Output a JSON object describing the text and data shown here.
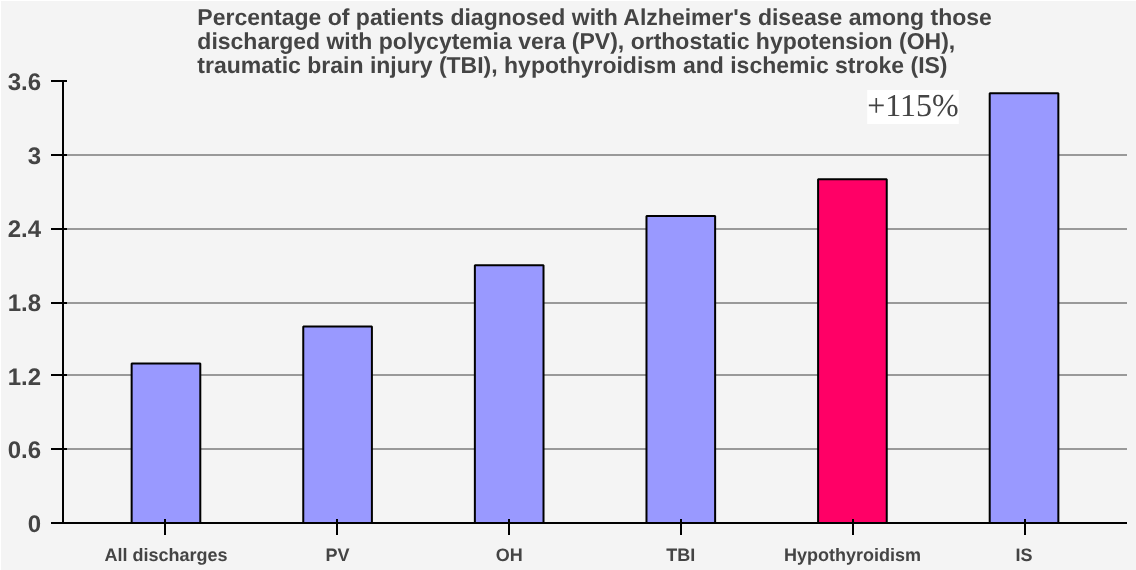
{
  "chart_data": {
    "type": "bar",
    "title": "Percentage of patients diagnosed with Alzheimer's disease among those\ndischarged with polycytemia vera (PV), orthostatic hypotension (OH),\ntraumatic brain injury (TBI), hypothyroidism and ischemic stroke (IS)",
    "categories": [
      "All discharges",
      "PV",
      "OH",
      "TBI",
      "Hypothyroidism",
      "IS"
    ],
    "values": [
      1.3,
      1.6,
      2.1,
      2.5,
      2.8,
      3.5
    ],
    "colors": [
      "#9999ff",
      "#9999ff",
      "#9999ff",
      "#9999ff",
      "#ff0066",
      "#9999ff"
    ],
    "ylim": [
      0,
      3.6
    ],
    "yticks": [
      0,
      0.6,
      1.2,
      1.8,
      2.4,
      3,
      3.6
    ],
    "grid": "y",
    "annotations": [
      "+115%"
    ]
  }
}
